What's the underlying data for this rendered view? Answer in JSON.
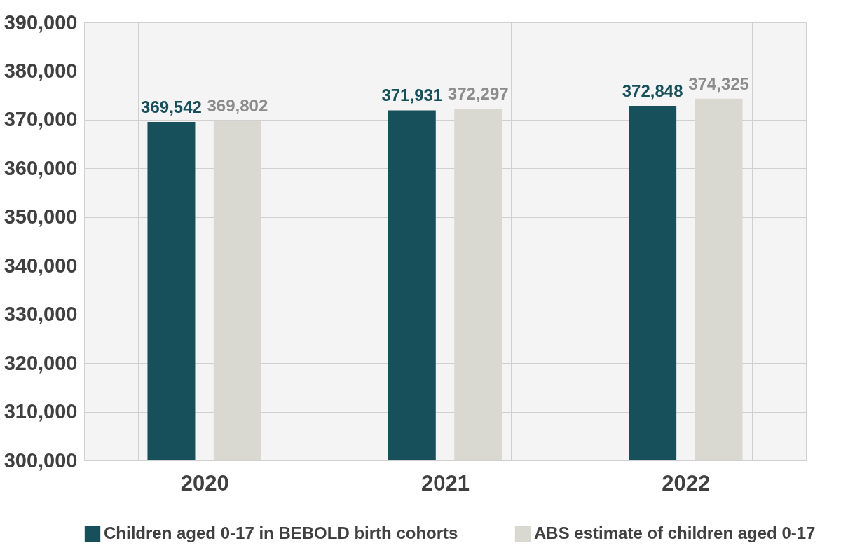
{
  "chart_data": {
    "type": "bar",
    "categories": [
      "2020",
      "2021",
      "2022"
    ],
    "series": [
      {
        "name": "Children aged 0-17 in BEBOLD birth cohorts",
        "color": "#174f5a",
        "values": [
          369542,
          371931,
          372848
        ],
        "value_labels": [
          "369,542",
          "371,931",
          "372,848"
        ]
      },
      {
        "name": "ABS estimate of children aged 0-17",
        "color": "#d9d9d2",
        "values": [
          369802,
          372297,
          374325
        ],
        "value_labels": [
          "369,802",
          "372,297",
          "374,325"
        ]
      }
    ],
    "ylim": [
      300000,
      390000
    ],
    "yticks": [
      {
        "value": 300000,
        "label": "300,000"
      },
      {
        "value": 310000,
        "label": "310,000"
      },
      {
        "value": 320000,
        "label": "320,000"
      },
      {
        "value": 330000,
        "label": "330,000"
      },
      {
        "value": 340000,
        "label": "340,000"
      },
      {
        "value": 350000,
        "label": "350,000"
      },
      {
        "value": 360000,
        "label": "360,000"
      },
      {
        "value": 370000,
        "label": "370,000"
      },
      {
        "value": 380000,
        "label": "380,000"
      },
      {
        "value": 390000,
        "label": "390,000"
      }
    ],
    "grid": true,
    "legend": "bottom"
  }
}
